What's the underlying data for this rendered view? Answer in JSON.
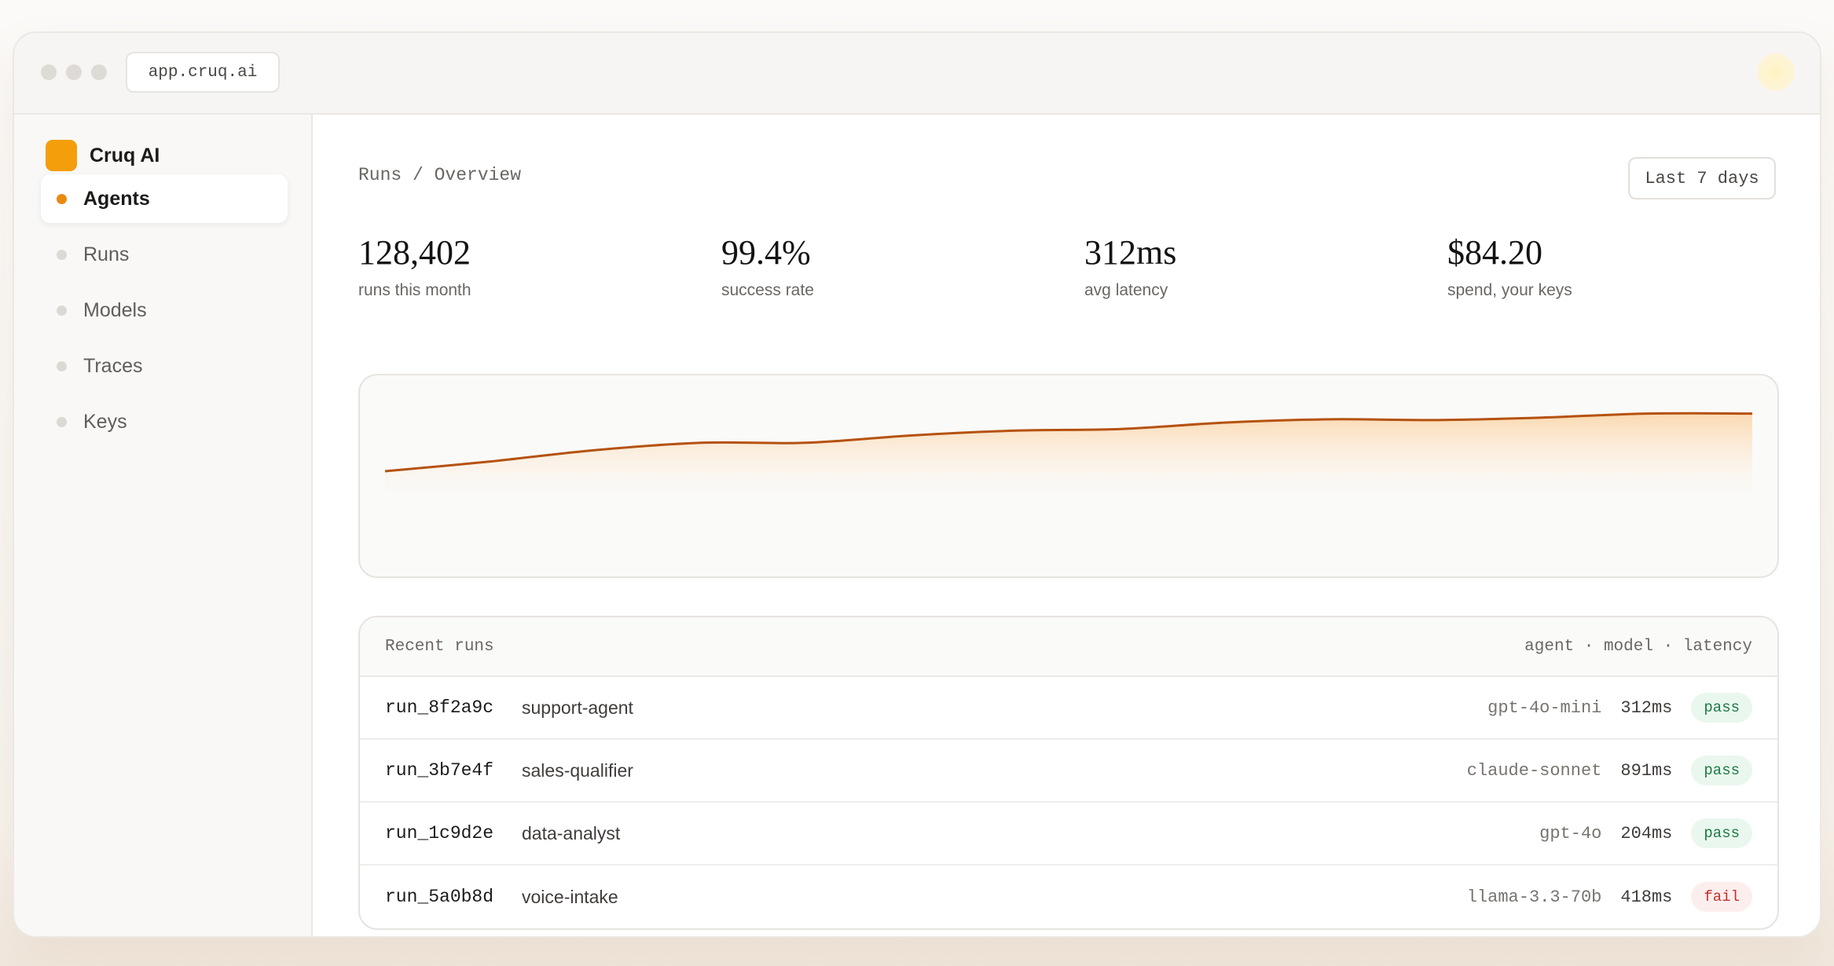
{
  "browser": {
    "url": "app.cruq.ai"
  },
  "sidebar": {
    "brand": "Cruq AI",
    "items": [
      {
        "label": "Agents",
        "active": true
      },
      {
        "label": "Runs",
        "active": false
      },
      {
        "label": "Models",
        "active": false
      },
      {
        "label": "Traces",
        "active": false
      },
      {
        "label": "Keys",
        "active": false
      }
    ]
  },
  "header": {
    "breadcrumb": "Runs / Overview",
    "range_label": "Last 7 days"
  },
  "stats": [
    {
      "value": "128,402",
      "label": "runs this month"
    },
    {
      "value": "99.4%",
      "label": "success rate"
    },
    {
      "value": "312ms",
      "label": "avg latency"
    },
    {
      "value": "$84.20",
      "label": "spend, your keys"
    }
  ],
  "chart_data": {
    "type": "area",
    "title": "",
    "xlabel": "",
    "ylabel": "",
    "grid": false,
    "y": [
      0.0,
      0.12,
      0.26,
      0.35,
      0.35,
      0.44,
      0.5,
      0.52,
      0.6,
      0.64,
      0.63,
      0.66,
      0.71,
      0.71
    ],
    "ylim": [
      0,
      1
    ],
    "colors": {
      "line": "#b5520f",
      "fill_top": "#fbd7ac"
    }
  },
  "recent_runs": {
    "title": "Recent runs",
    "columns_hint": "agent · model · latency",
    "rows": [
      {
        "id": "run_8f2a9c",
        "agent": "support-agent",
        "model": "gpt-4o-mini",
        "latency": "312ms",
        "status": "pass"
      },
      {
        "id": "run_3b7e4f",
        "agent": "sales-qualifier",
        "model": "claude-sonnet",
        "latency": "891ms",
        "status": "pass"
      },
      {
        "id": "run_1c9d2e",
        "agent": "data-analyst",
        "model": "gpt-4o",
        "latency": "204ms",
        "status": "pass"
      },
      {
        "id": "run_5a0b8d",
        "agent": "voice-intake",
        "model": "llama-3.3-70b",
        "latency": "418ms",
        "status": "fail"
      }
    ]
  }
}
